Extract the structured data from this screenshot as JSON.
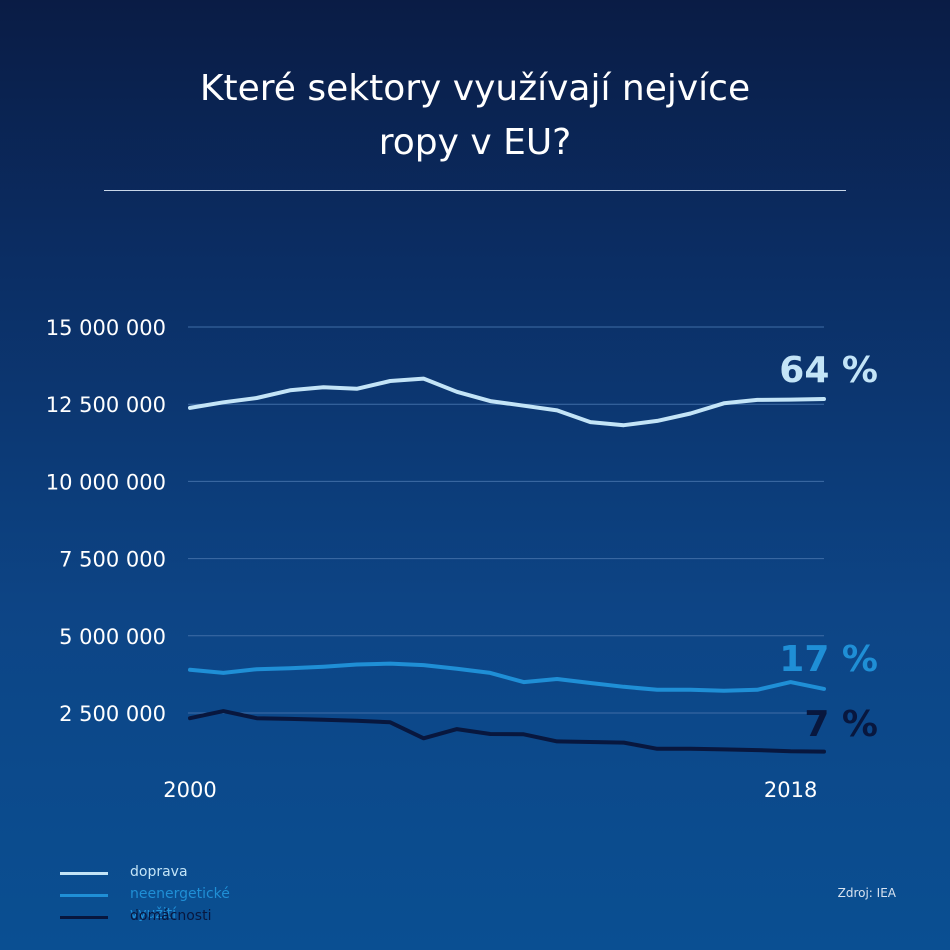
{
  "title_line1": "Které sektory využívají nejvíce",
  "title_line2": "ropy v EU?",
  "source": "Zdroj: IEA",
  "chart_data": {
    "type": "line",
    "title": "Které sektory využívají nejvíce ropy v EU?",
    "x": [
      2000,
      2001,
      2002,
      2003,
      2004,
      2005,
      2006,
      2007,
      2008,
      2009,
      2010,
      2011,
      2012,
      2013,
      2014,
      2015,
      2016,
      2017,
      2018,
      2019
    ],
    "x_tick_labels": [
      "2000",
      "2018"
    ],
    "y_tick_labels": [
      "15 000 000",
      "12 500 000",
      "10 000 000",
      "7 500 000",
      "5 000 000",
      "2 500 000"
    ],
    "y_ticks": [
      15000000,
      12500000,
      10000000,
      7500000,
      5000000,
      2500000
    ],
    "ylim": [
      0,
      15000000
    ],
    "series": [
      {
        "name": "doprava",
        "color": "#c3e4f7",
        "end_label": "64 %",
        "values": [
          12380000,
          12560000,
          12700000,
          12950000,
          13050000,
          13000000,
          13250000,
          13330000,
          12900000,
          12600000,
          12450000,
          12300000,
          11920000,
          11820000,
          11960000,
          12200000,
          12530000,
          12640000,
          12650000,
          12670000
        ]
      },
      {
        "name": "neenergetické využití",
        "color": "#1f8fd6",
        "end_label": "17 %",
        "values": [
          3900000,
          3800000,
          3920000,
          3950000,
          4000000,
          4070000,
          4100000,
          4050000,
          3930000,
          3800000,
          3500000,
          3600000,
          3470000,
          3350000,
          3250000,
          3250000,
          3220000,
          3250000,
          3500000,
          3280000
        ]
      },
      {
        "name": "domácnosti",
        "color": "#08173e",
        "end_label": "7 %",
        "values": [
          2330000,
          2560000,
          2330000,
          2310000,
          2280000,
          2250000,
          2200000,
          1680000,
          1980000,
          1820000,
          1810000,
          1580000,
          1560000,
          1540000,
          1340000,
          1340000,
          1320000,
          1300000,
          1260000,
          1250000
        ]
      }
    ]
  }
}
